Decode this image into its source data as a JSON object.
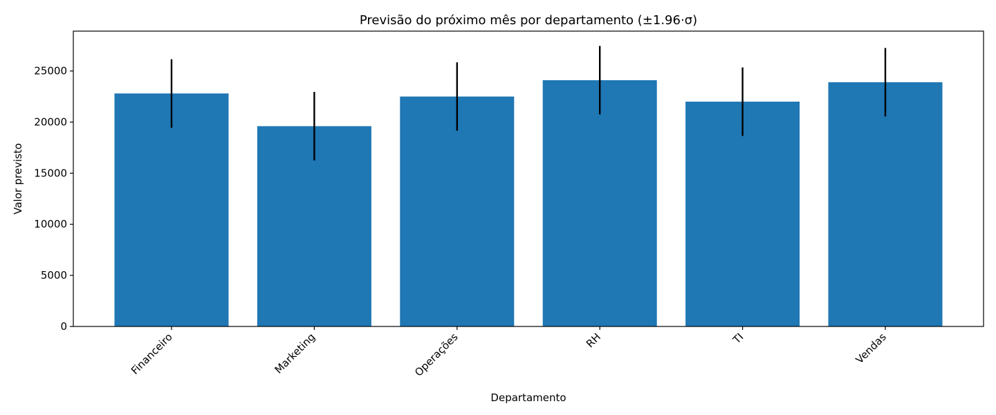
{
  "chart_data": {
    "type": "bar",
    "title": "Previsão do próximo mês por departamento (±1.96·σ)",
    "xlabel": "Departamento",
    "ylabel": "Valor previsto",
    "categories": [
      "Financeiro",
      "Marketing",
      "Operações",
      "RH",
      "TI",
      "Vendas"
    ],
    "values": [
      22800,
      19600,
      22500,
      24100,
      22000,
      23900
    ],
    "error": [
      3350,
      3350,
      3350,
      3350,
      3350,
      3350
    ],
    "ylim": [
      0,
      28900
    ],
    "yticks": [
      0,
      5000,
      10000,
      15000,
      20000,
      25000
    ],
    "grid": false,
    "bar_color": "#1f77b4",
    "error_color": "#000000"
  }
}
